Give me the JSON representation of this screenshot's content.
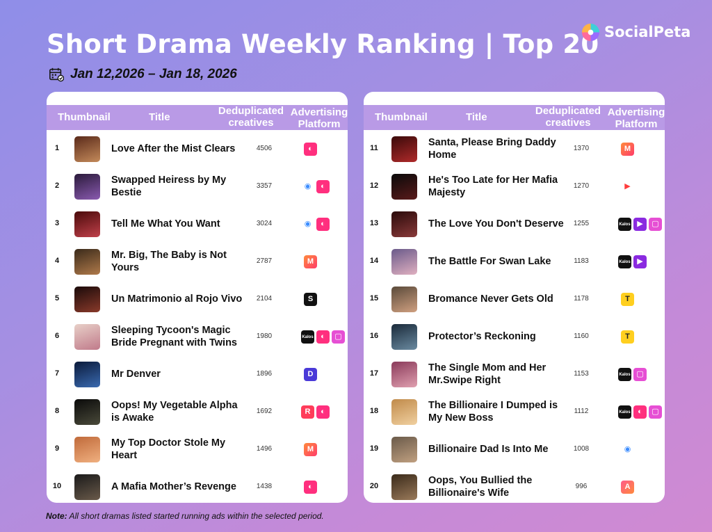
{
  "header": {
    "title": "Short Drama Weekly Ranking | Top 20",
    "date_range": "Jan 12,2026 – Jan 18, 2026",
    "brand": "SocialPeta"
  },
  "columns": {
    "thumbnail": "Thumbnail",
    "title": "Title",
    "dedup_line1": "Deduplicated",
    "dedup_line2": "creatives",
    "adv_line1": "Advertising",
    "adv_line2": "Platform"
  },
  "rows": [
    {
      "rank": "1",
      "title": "Love After the Mist Clears",
      "count": "4506",
      "platforms": [
        "pink-app-icon"
      ]
    },
    {
      "rank": "2",
      "title": "Swapped Heiress by My Bestie",
      "count": "3357",
      "platforms": [
        "dramabox-icon",
        "pink-app-icon"
      ]
    },
    {
      "rank": "3",
      "title": "Tell Me What You Want",
      "count": "3024",
      "platforms": [
        "dramabox-icon",
        "pink-app-icon"
      ]
    },
    {
      "rank": "4",
      "title": "Mr. Big, The Baby is Not Yours",
      "count": "2787",
      "platforms": [
        "melolo-icon"
      ]
    },
    {
      "rank": "5",
      "title": "Un Matrimonio al Rojo Vivo",
      "count": "2104",
      "platforms": [
        "shortmax-icon"
      ]
    },
    {
      "rank": "6",
      "title": "Sleeping Tycoon's Magic Bride Pregnant with Twins",
      "count": "1980",
      "platforms": [
        "kalos-icon",
        "pink-app-icon",
        "chat-icon"
      ]
    },
    {
      "rank": "7",
      "title": "Mr Denver",
      "count": "1896",
      "platforms": [
        "purple-d-icon"
      ]
    },
    {
      "rank": "8",
      "title": "Oops! My Vegetable Alpha is Awake",
      "count": "1692",
      "platforms": [
        "reelshort-icon",
        "pink-app-icon"
      ]
    },
    {
      "rank": "9",
      "title": "My Top Doctor Stole My Heart",
      "count": "1496",
      "platforms": [
        "melolo-icon"
      ]
    },
    {
      "rank": "10",
      "title": "A Mafia Mother’s Revenge",
      "count": "1438",
      "platforms": [
        "pink-app-icon"
      ]
    },
    {
      "rank": "11",
      "title": "Santa, Please Bring Daddy Home",
      "count": "1370",
      "platforms": [
        "melolo-icon"
      ]
    },
    {
      "rank": "12",
      "title": "He's Too Late for Her Mafia Majesty",
      "count": "1270",
      "platforms": [
        "play-icon"
      ]
    },
    {
      "rank": "13",
      "title": "The Love You Don't Deserve",
      "count": "1255",
      "platforms": [
        "kalos-icon",
        "reel-play-icon",
        "chat-icon"
      ]
    },
    {
      "rank": "14",
      "title": "The Battle For Swan Lake",
      "count": "1183",
      "platforms": [
        "kalos-icon",
        "reel-play-icon"
      ]
    },
    {
      "rank": "15",
      "title": "Bromance Never Gets Old",
      "count": "1178",
      "platforms": [
        "yellow-t-icon"
      ]
    },
    {
      "rank": "16",
      "title": "Protector’s Reckoning",
      "count": "1160",
      "platforms": [
        "yellow-t-icon"
      ]
    },
    {
      "rank": "17",
      "title": "The Single Mom and Her Mr.Swipe Right",
      "count": "1153",
      "platforms": [
        "kalos-icon",
        "chat-icon"
      ]
    },
    {
      "rank": "18",
      "title": "The Billionaire I Dumped is My New Boss",
      "count": "1112",
      "platforms": [
        "kalos-icon",
        "pink-app-icon",
        "chat-icon"
      ]
    },
    {
      "rank": "19",
      "title": "Billionaire Dad Is Into Me",
      "count": "1008",
      "platforms": [
        "dramabox-icon"
      ]
    },
    {
      "rank": "20",
      "title": "Oops, You Bullied the Billionaire's Wife",
      "count": "996",
      "platforms": [
        "alpha-a-icon"
      ]
    }
  ],
  "note": {
    "label": "Note:",
    "text": " All short dramas listed started running ads within the selected period."
  },
  "colors": {
    "header_bg": "#b99ae6",
    "pink_app": "#ff2f7e",
    "melolo": "#ff5a3c",
    "kalos": "#111111",
    "chat": "#e64fd4",
    "yellow_t": "#ffcf1f"
  }
}
